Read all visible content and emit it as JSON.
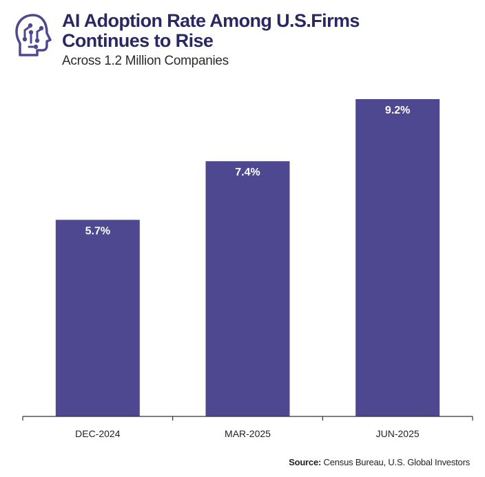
{
  "header": {
    "title_line1": "AI Adoption Rate Among U.S.Firms",
    "title_line2": "Continues to Rise",
    "subtitle": "Across 1.2 Million Companies",
    "logo_icon": "ai-head-circuit-icon"
  },
  "colors": {
    "bar": "#4e4891",
    "title": "#2a2862",
    "axis": "#333333",
    "label_inside": "#ffffff"
  },
  "chart_data": {
    "type": "bar",
    "title": "AI Adoption Rate Among U.S.Firms Continues to Rise",
    "subtitle": "Across 1.2 Million Companies",
    "categories": [
      "DEC-2024",
      "MAR-2025",
      "JUN-2025"
    ],
    "values": [
      5.7,
      7.4,
      9.2
    ],
    "value_labels": [
      "5.7%",
      "7.4%",
      "9.2%"
    ],
    "xlabel": "",
    "ylabel": "",
    "ylim": [
      0,
      9.2
    ],
    "grid": false,
    "legend": "none"
  },
  "footer": {
    "source_label": "Source:",
    "source_text": " Census Bureau, U.S. Global Investors"
  }
}
